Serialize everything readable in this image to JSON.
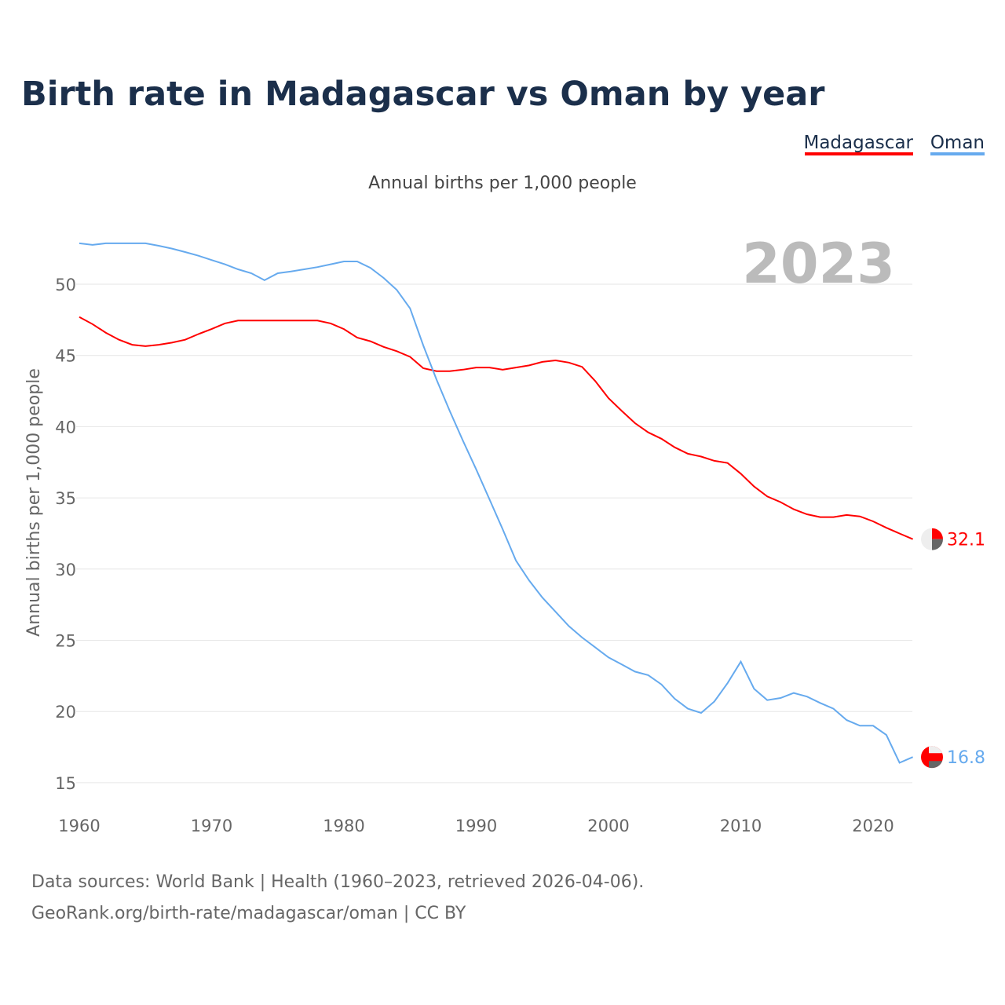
{
  "colors": {
    "madagascar": "#ff0000",
    "oman": "#66aaee",
    "grid": "#e6e6e6"
  },
  "chart_data": {
    "type": "line",
    "title": "Birth rate in Madagascar vs Oman by year",
    "subtitle": "Annual births per 1,000 people",
    "ylabel": "Annual births per 1,000 people",
    "xlabel": "",
    "year_label": "2023",
    "xlim": [
      1960,
      2023
    ],
    "ylim": [
      15,
      53
    ],
    "xticks": [
      1960,
      1970,
      1980,
      1990,
      2000,
      2010,
      2020
    ],
    "yticks": [
      15,
      20,
      25,
      30,
      35,
      40,
      45,
      50
    ],
    "grid": true,
    "legend_position": "top-right",
    "x_start": 1960,
    "series": [
      {
        "name": "Madagascar",
        "end_label": "32.1",
        "values": [
          47.7,
          47.2,
          46.6,
          46.1,
          45.75,
          45.65,
          45.75,
          45.9,
          46.1,
          46.5,
          46.85,
          47.25,
          47.45,
          47.45,
          47.45,
          47.45,
          47.45,
          47.45,
          47.45,
          47.25,
          46.85,
          46.25,
          46.0,
          45.6,
          45.3,
          44.9,
          44.1,
          43.9,
          43.9,
          44.0,
          44.15,
          44.15,
          44.0,
          44.15,
          44.3,
          44.55,
          44.65,
          44.5,
          44.2,
          43.2,
          42.0,
          41.1,
          40.25,
          39.6,
          39.15,
          38.55,
          38.1,
          37.9,
          37.6,
          37.45,
          36.7,
          35.8,
          35.1,
          34.7,
          34.2,
          33.85,
          33.65,
          33.65,
          33.8,
          33.7,
          33.35,
          32.9,
          32.5,
          32.1
        ]
      },
      {
        "name": "Oman",
        "end_label": "16.8",
        "values": [
          52.87,
          52.76,
          52.87,
          52.87,
          52.87,
          52.87,
          52.7,
          52.5,
          52.26,
          52.0,
          51.7,
          51.4,
          51.05,
          50.77,
          50.28,
          50.77,
          50.9,
          51.05,
          51.2,
          51.4,
          51.6,
          51.6,
          51.15,
          50.44,
          49.6,
          48.3,
          45.7,
          43.3,
          41.1,
          39.0,
          37.0,
          34.9,
          32.8,
          30.6,
          29.2,
          28.0,
          27.0,
          26.0,
          25.2,
          24.5,
          23.8,
          23.3,
          22.8,
          22.55,
          21.9,
          20.9,
          20.2,
          19.9,
          20.7,
          22.0,
          23.5,
          21.6,
          20.8,
          20.95,
          21.3,
          21.05,
          20.6,
          20.2,
          19.4,
          19.0,
          19.0,
          18.35,
          16.4,
          16.8
        ]
      }
    ]
  },
  "footer": {
    "line1": "Data sources: World Bank | Health (1960–2023, retrieved 2026-04-06).",
    "line2": "GeoRank.org/birth-rate/madagascar/oman | CC BY"
  }
}
